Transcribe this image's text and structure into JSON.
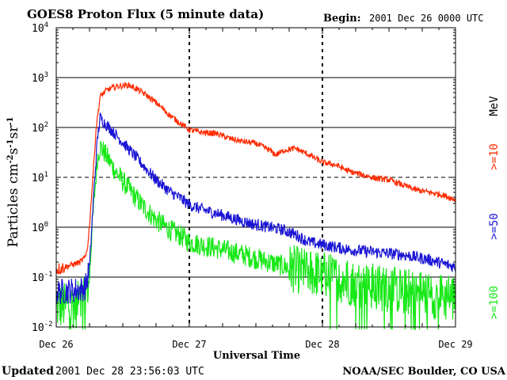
{
  "colors": {
    "red": "#ff2a00",
    "blue": "#1a14d4",
    "green": "#18e818",
    "black": "#000000"
  },
  "chart_data": {
    "type": "line",
    "title": "GOES8 Proton Flux (5 minute data)",
    "begin_label": "Begin:",
    "begin_value": "2001 Dec 26 0000 UTC",
    "xlabel": "Universal Time",
    "ylabel_main": "Particles cm",
    "ylabel_parts": [
      "-2",
      "s",
      "-1",
      "sr",
      "-1"
    ],
    "xlim_days": [
      0,
      3
    ],
    "x_ticks": [
      {
        "day": 0,
        "label": "Dec 26"
      },
      {
        "day": 1,
        "label": "Dec 27"
      },
      {
        "day": 2,
        "label": "Dec 28"
      },
      {
        "day": 3,
        "label": "Dec 29"
      }
    ],
    "ylim_log10": [
      -2,
      4
    ],
    "y_ticks": [
      {
        "exp": 4,
        "base": "10",
        "sup": "4"
      },
      {
        "exp": 3,
        "base": "10",
        "sup": "3"
      },
      {
        "exp": 2,
        "base": "10",
        "sup": "2"
      },
      {
        "exp": 1,
        "base": "10",
        "sup": "1"
      },
      {
        "exp": 0,
        "base": "10",
        "sup": "0"
      },
      {
        "exp": -1,
        "base": "10",
        "sup": "-1"
      },
      {
        "exp": -2,
        "base": "10",
        "sup": "-2"
      }
    ],
    "units_label": "MeV",
    "series": [
      {
        "name": ">=10",
        "color_key": "red",
        "noise": 0.06,
        "points": [
          [
            0,
            -0.85
          ],
          [
            0.18,
            -0.7
          ],
          [
            0.22,
            -0.6
          ],
          [
            0.24,
            -0.3
          ],
          [
            0.27,
            0.8
          ],
          [
            0.3,
            2.0
          ],
          [
            0.33,
            2.62
          ],
          [
            0.38,
            2.75
          ],
          [
            0.45,
            2.82
          ],
          [
            0.55,
            2.85
          ],
          [
            0.65,
            2.7
          ],
          [
            0.75,
            2.5
          ],
          [
            0.85,
            2.25
          ],
          [
            0.95,
            2.05
          ],
          [
            1.0,
            1.95
          ],
          [
            1.1,
            1.9
          ],
          [
            1.2,
            1.88
          ],
          [
            1.3,
            1.78
          ],
          [
            1.4,
            1.72
          ],
          [
            1.5,
            1.68
          ],
          [
            1.6,
            1.55
          ],
          [
            1.65,
            1.45
          ],
          [
            1.72,
            1.55
          ],
          [
            1.8,
            1.58
          ],
          [
            1.9,
            1.45
          ],
          [
            2.0,
            1.3
          ],
          [
            2.1,
            1.25
          ],
          [
            2.2,
            1.12
          ],
          [
            2.3,
            1.05
          ],
          [
            2.4,
            0.98
          ],
          [
            2.5,
            0.95
          ],
          [
            2.6,
            0.85
          ],
          [
            2.7,
            0.75
          ],
          [
            2.8,
            0.7
          ],
          [
            2.9,
            0.65
          ],
          [
            3.0,
            0.55
          ]
        ]
      },
      {
        "name": ">=50",
        "color_key": "blue",
        "noise": 0.12,
        "points": [
          [
            0,
            -1.3
          ],
          [
            0.18,
            -1.25
          ],
          [
            0.22,
            -1.2
          ],
          [
            0.25,
            -0.8
          ],
          [
            0.28,
            0.6
          ],
          [
            0.31,
            1.8
          ],
          [
            0.33,
            2.2
          ],
          [
            0.36,
            2.1
          ],
          [
            0.45,
            1.85
          ],
          [
            0.55,
            1.55
          ],
          [
            0.65,
            1.25
          ],
          [
            0.75,
            0.95
          ],
          [
            0.85,
            0.72
          ],
          [
            0.95,
            0.55
          ],
          [
            1.0,
            0.45
          ],
          [
            1.1,
            0.35
          ],
          [
            1.2,
            0.28
          ],
          [
            1.3,
            0.2
          ],
          [
            1.4,
            0.12
          ],
          [
            1.5,
            0.05
          ],
          [
            1.6,
            0.0
          ],
          [
            1.7,
            -0.05
          ],
          [
            1.8,
            -0.15
          ],
          [
            1.9,
            -0.3
          ],
          [
            2.0,
            -0.35
          ],
          [
            2.2,
            -0.45
          ],
          [
            2.4,
            -0.5
          ],
          [
            2.6,
            -0.55
          ],
          [
            2.8,
            -0.65
          ],
          [
            3.0,
            -0.8
          ]
        ]
      },
      {
        "name": ">=100",
        "color_key": "green",
        "noise": 0.22,
        "points": [
          [
            0,
            -1.6
          ],
          [
            0.18,
            -1.55
          ],
          [
            0.22,
            -1.45
          ],
          [
            0.25,
            -0.9
          ],
          [
            0.28,
            0.4
          ],
          [
            0.31,
            1.4
          ],
          [
            0.33,
            1.62
          ],
          [
            0.36,
            1.5
          ],
          [
            0.45,
            1.1
          ],
          [
            0.55,
            0.75
          ],
          [
            0.65,
            0.42
          ],
          [
            0.75,
            0.15
          ],
          [
            0.85,
            -0.05
          ],
          [
            0.95,
            -0.2
          ],
          [
            1.0,
            -0.3
          ],
          [
            1.2,
            -0.42
          ],
          [
            1.4,
            -0.55
          ],
          [
            1.6,
            -0.7
          ],
          [
            1.8,
            -0.85
          ],
          [
            2.0,
            -0.95
          ],
          [
            2.2,
            -1.1
          ],
          [
            2.4,
            -1.2
          ],
          [
            2.6,
            -1.28
          ],
          [
            2.8,
            -1.35
          ],
          [
            3.0,
            -1.45
          ]
        ]
      }
    ]
  },
  "footer": {
    "updated_label": "Updated",
    "updated_value": "2001 Dec 28 23:56:03 UTC",
    "credit": "NOAA/SEC Boulder, CO USA"
  }
}
